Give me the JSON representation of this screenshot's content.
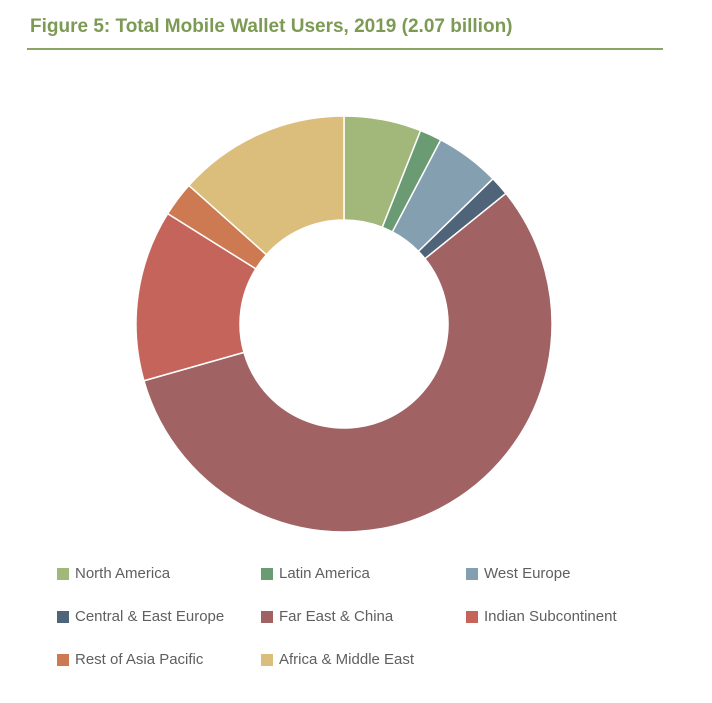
{
  "chart_data": {
    "type": "pie",
    "variant": "donut",
    "title": "Figure 5: Total Mobile Wallet Users, 2019 (2.07 billion)",
    "legend_position": "bottom",
    "series": [
      {
        "name": "North America",
        "value": 6.0,
        "color": "#a2b77a"
      },
      {
        "name": "Latin America",
        "value": 1.7,
        "color": "#6a9b73"
      },
      {
        "name": "West Europe",
        "value": 5.0,
        "color": "#84a0b0"
      },
      {
        "name": "Central & East Europe",
        "value": 1.5,
        "color": "#4f6478"
      },
      {
        "name": "Far East & China",
        "value": 56.4,
        "color": "#a06262"
      },
      {
        "name": "Indian Subcontinent",
        "value": 13.3,
        "color": "#c4645a"
      },
      {
        "name": "Rest of Asia Pacific",
        "value": 2.7,
        "color": "#cd7a52"
      },
      {
        "name": "Africa & Middle East",
        "value": 13.4,
        "color": "#dbbd7c"
      }
    ]
  }
}
